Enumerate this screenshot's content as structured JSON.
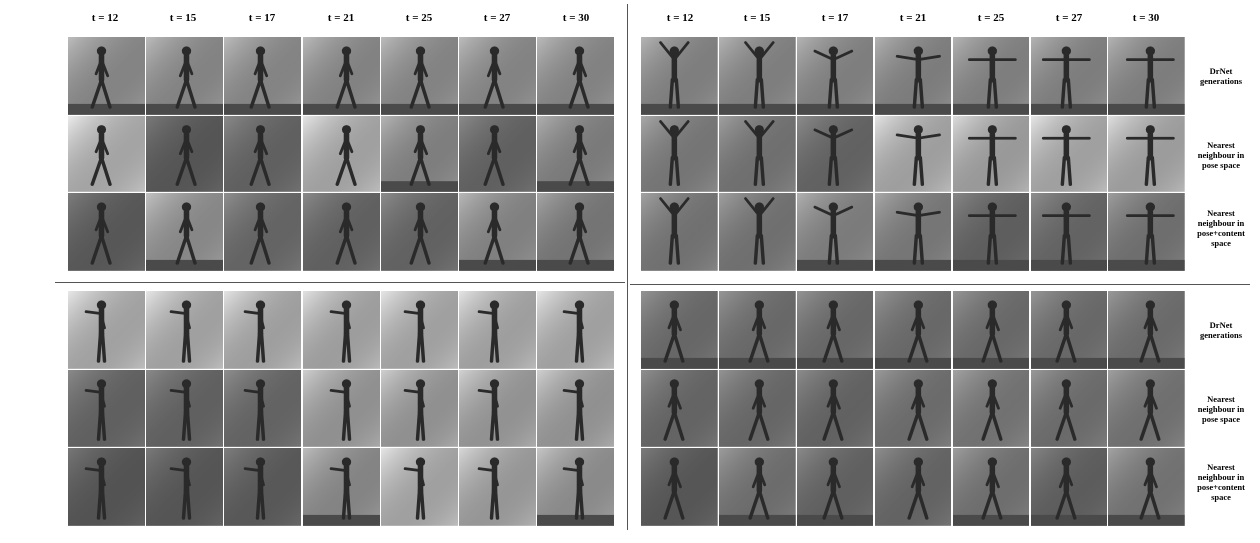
{
  "timesteps": [
    "t = 12",
    "t = 15",
    "t = 17",
    "t = 21",
    "t = 25",
    "t = 27",
    "t = 30"
  ],
  "row_labels": [
    [
      "DrNet",
      "generations"
    ],
    [
      "Nearest",
      "neighbour in",
      "pose space"
    ],
    [
      "Nearest",
      "neighbour in",
      "pose+content",
      "space"
    ]
  ],
  "panels": [
    {
      "name": "top-left",
      "motion": "walking",
      "rows": [
        {
          "bg": [
            "#bdbdbd",
            "#bcbcbc",
            "#bdbdbd",
            "#bbbbbb",
            "#bcbcbc",
            "#bcbcbc",
            "#bbbbbb"
          ],
          "floor": [
            true,
            true,
            true,
            true,
            true,
            true,
            true
          ],
          "light": false
        },
        {
          "bg": [
            "#ececec",
            "#7a7a7a",
            "#8a8a8a",
            "#e6e6e6",
            "#b5b5b5",
            "#8a8a8a",
            "#b0b0b0"
          ],
          "floor": [
            false,
            false,
            false,
            false,
            true,
            false,
            true
          ],
          "light": false
        },
        {
          "bg": [
            "#7d7d7d",
            "#c2c2c2",
            "#8f8f8f",
            "#8a8a8a",
            "#8c8c8c",
            "#b8b8b8",
            "#a6a6a6"
          ],
          "floor": [
            false,
            true,
            false,
            false,
            false,
            true,
            true
          ],
          "light": false
        }
      ]
    },
    {
      "name": "top-right",
      "motion": "waving",
      "rows": [
        {
          "bg": [
            "#b5b5b5",
            "#b5b5b5",
            "#b5b5b5",
            "#b3b3b3",
            "#b5b5b5",
            "#b4b4b4",
            "#b4b4b4"
          ],
          "floor": [
            true,
            true,
            true,
            true,
            true,
            true,
            true
          ],
          "light": false
        },
        {
          "bg": [
            "#a8a8a8",
            "#a0a0a0",
            "#8c8c8c",
            "#e4e4e4",
            "#dcdcdc",
            "#e6e6e6",
            "#e0e0e0"
          ],
          "floor": [
            false,
            false,
            false,
            false,
            false,
            false,
            false
          ],
          "light": false
        },
        {
          "bg": [
            "#a2a2a2",
            "#a0a0a0",
            "#b1b1b1",
            "#a9a9a9",
            "#878787",
            "#8e8e8e",
            "#9e9e9e"
          ],
          "floor": [
            false,
            false,
            true,
            true,
            true,
            true,
            true
          ],
          "light": false
        }
      ]
    },
    {
      "name": "bottom-left",
      "motion": "boxing",
      "rows": [
        {
          "bg": [
            "#e8e8e8",
            "#e6e6e6",
            "#e4e4e4",
            "#e2e2e2",
            "#e6e6e6",
            "#e4e4e4",
            "#e6e6e6"
          ],
          "floor": [
            false,
            false,
            false,
            false,
            false,
            false,
            false
          ],
          "light": true
        },
        {
          "bg": [
            "#8a8a8a",
            "#8a8a8a",
            "#8e8e8e",
            "#cfcfcf",
            "#cfcfcf",
            "#d2d2d2",
            "#d0d0d0"
          ],
          "floor": [
            false,
            false,
            false,
            false,
            false,
            false,
            false
          ],
          "light": false
        },
        {
          "bg": [
            "#777777",
            "#7a7a7a",
            "#7e7e7e",
            "#bdbdbd",
            "#e6e6e6",
            "#d8d8d8",
            "#c6c6c6"
          ],
          "floor": [
            false,
            false,
            false,
            true,
            false,
            false,
            true
          ],
          "light": false
        }
      ]
    },
    {
      "name": "bottom-right",
      "motion": "walking",
      "rows": [
        {
          "bg": [
            "#949494",
            "#969696",
            "#949494",
            "#969696",
            "#969696",
            "#969696",
            "#999999"
          ],
          "floor": [
            true,
            true,
            true,
            true,
            true,
            true,
            true
          ],
          "light": false
        },
        {
          "bg": [
            "#8f8f8f",
            "#939393",
            "#8c8c8c",
            "#9a9a9a",
            "#a3a3a3",
            "#999999",
            "#a0a0a0"
          ],
          "floor": [
            false,
            false,
            false,
            false,
            false,
            false,
            false
          ],
          "light": false
        },
        {
          "bg": [
            "#7b7b7b",
            "#9c9c9c",
            "#8a8a8a",
            "#8e8e8e",
            "#9e9e9e",
            "#858585",
            "#a3a3a3"
          ],
          "floor": [
            false,
            true,
            true,
            false,
            true,
            true,
            true
          ],
          "light": false
        }
      ]
    }
  ]
}
